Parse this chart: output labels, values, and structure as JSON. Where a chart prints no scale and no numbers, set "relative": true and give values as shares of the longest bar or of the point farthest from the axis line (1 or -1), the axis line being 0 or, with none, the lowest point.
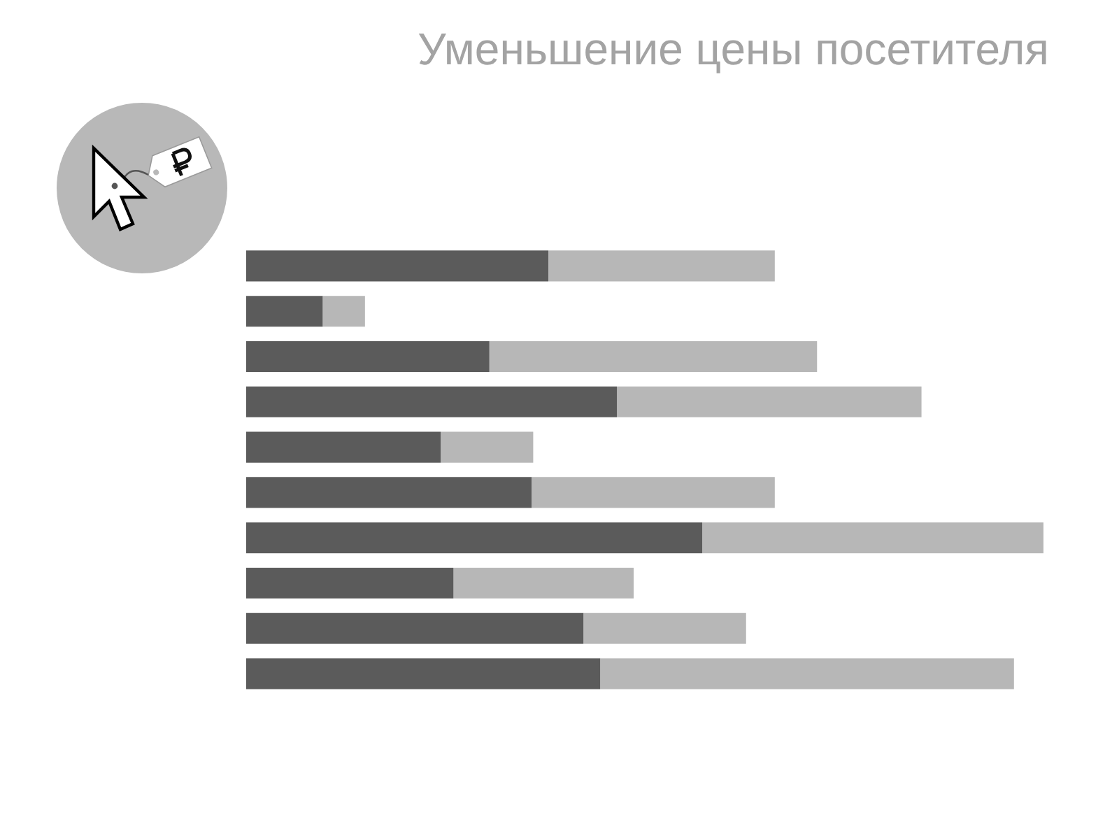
{
  "chart_data": {
    "type": "bar",
    "title": "Уменьшение цены посетителя",
    "orientation": "horizontal",
    "stacked": true,
    "relative": true,
    "categories": [
      null,
      null,
      null,
      null,
      null,
      null,
      null,
      null,
      null,
      null
    ],
    "series": [
      {
        "color": "#5b5b5b",
        "values": [
          0.379,
          0.096,
          0.305,
          0.465,
          0.244,
          0.358,
          0.572,
          0.26,
          0.423,
          0.444
        ]
      },
      {
        "color": "#b7b7b7",
        "values": [
          0.284,
          0.053,
          0.411,
          0.382,
          0.116,
          0.305,
          0.428,
          0.226,
          0.204,
          0.519
        ]
      }
    ]
  }
}
